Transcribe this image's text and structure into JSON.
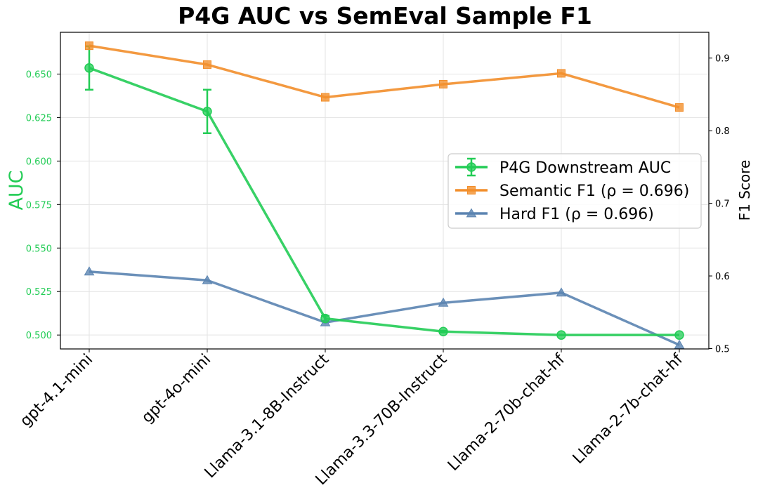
{
  "chart_data": {
    "type": "line",
    "title": "P4G AUC vs SemEval Sample F1",
    "ylabel_left": "AUC",
    "ylabel_right": "F1 Score",
    "ylim_left": [
      0.492,
      0.674
    ],
    "ylim_right": [
      0.4995,
      0.9355
    ],
    "yticks_left": [
      0.5,
      0.525,
      0.55,
      0.575,
      0.6,
      0.625,
      0.65
    ],
    "ytick_labels_left": [
      "0.500",
      "0.525",
      "0.550",
      "0.575",
      "0.600",
      "0.625",
      "0.650"
    ],
    "yticks_right": [
      0.5,
      0.6,
      0.7,
      0.8,
      0.9
    ],
    "ytick_labels_right": [
      "0.5",
      "0.6",
      "0.7",
      "0.8",
      "0.9"
    ],
    "categories": [
      "gpt-4.1-mini",
      "gpt-4o-mini",
      "Llama-3.1-8B-Instruct",
      "Llama-3.3-70B-Instruct",
      "Llama-2-70b-chat-hf",
      "Llama-2-7b-chat-hf"
    ],
    "grid": true,
    "legend_position": "center-right",
    "series": [
      {
        "name": "P4G Downstream AUC",
        "axis": "left",
        "marker": "circle",
        "color": "#22cc55",
        "values": [
          0.6535,
          0.6285,
          0.5095,
          0.502,
          0.5,
          0.5
        ],
        "errors": [
          0.0125,
          0.0125,
          0.0015,
          0.0005,
          0.0,
          0.0
        ]
      },
      {
        "name": "Semantic F1 (ρ = 0.696)",
        "axis": "right",
        "marker": "square",
        "color": "#f28e2b",
        "values": [
          0.917,
          0.891,
          0.846,
          0.864,
          0.879,
          0.832
        ]
      },
      {
        "name": "Hard F1 (ρ = 0.696)",
        "axis": "right",
        "marker": "triangle",
        "color": "#5b84b1",
        "values": [
          0.606,
          0.594,
          0.536,
          0.563,
          0.577,
          0.505
        ]
      }
    ]
  }
}
